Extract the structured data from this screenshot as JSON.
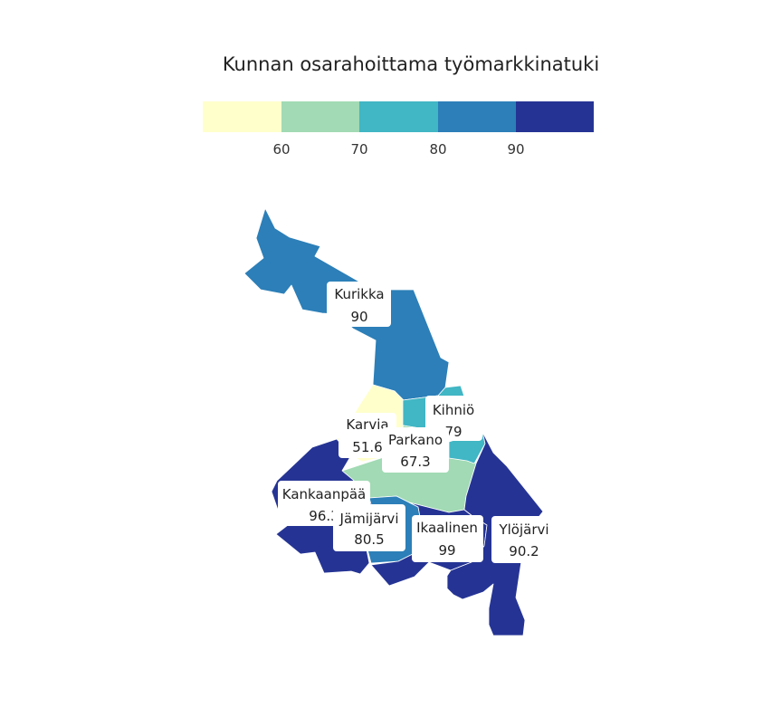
{
  "legend": {
    "title": "Kunnan osarahoittama työmarkkinatuki",
    "ticks": [
      "60",
      "70",
      "80",
      "90"
    ],
    "colors": [
      "#ffffcc",
      "#a1dab4",
      "#41b6c4",
      "#2c7fb8",
      "#253494"
    ]
  },
  "regions": [
    {
      "name": "Kurikka",
      "value": "90",
      "color": "#2c7fb8"
    },
    {
      "name": "Karvia",
      "value": "51.6",
      "color": "#ffffcc"
    },
    {
      "name": "Kihniö",
      "value": "79",
      "color": "#41b6c4"
    },
    {
      "name": "Parkano",
      "value": "67.3",
      "color": "#a1dab4"
    },
    {
      "name": "Kankaanpää",
      "value": "96.3",
      "color": "#253494"
    },
    {
      "name": "Jämijärvi",
      "value": "80.5",
      "color": "#2c7fb8"
    },
    {
      "name": "Ikaalinen",
      "value": "99",
      "color": "#253494"
    },
    {
      "name": "Ylöjärvi",
      "value": "90.2",
      "color": "#253494"
    }
  ]
}
